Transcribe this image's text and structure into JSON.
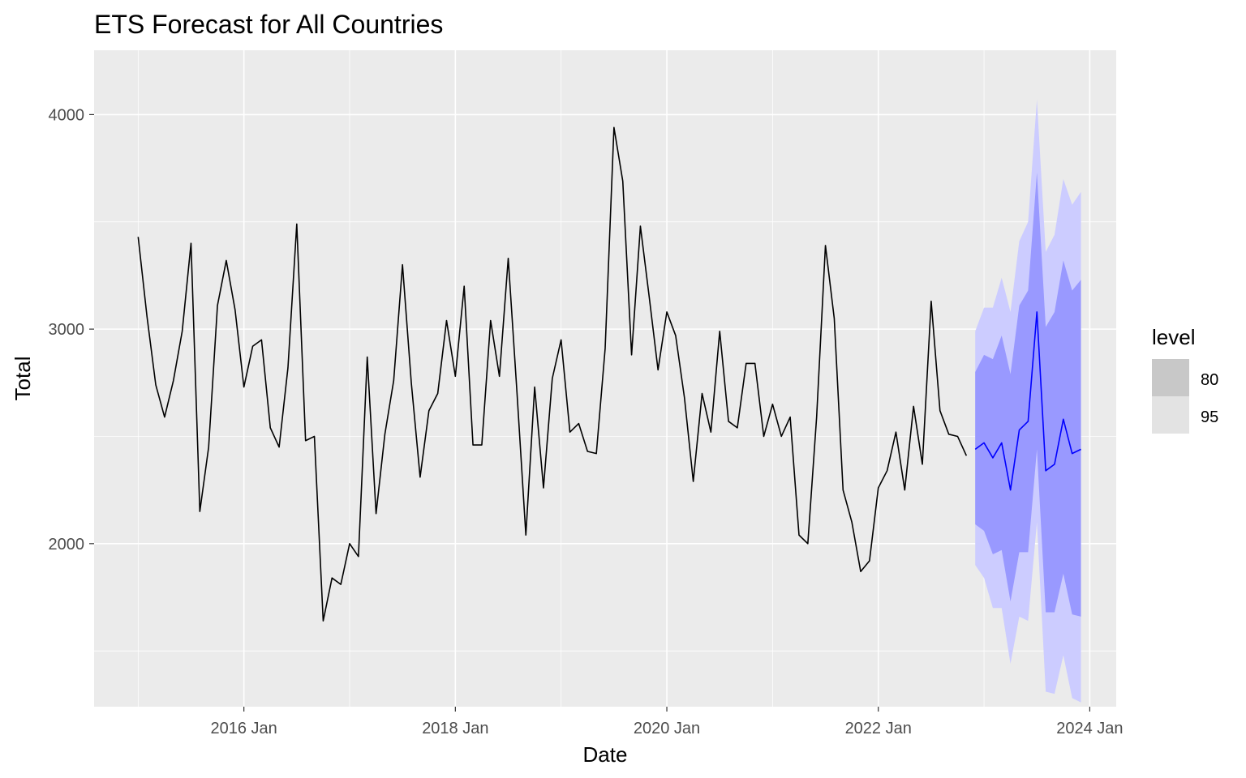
{
  "chart_data": {
    "type": "line",
    "title": "ETS Forecast for All Countries",
    "xlabel": "Date",
    "ylabel": "Total",
    "x_ticks": [
      "2016 Jan",
      "2018 Jan",
      "2020 Jan",
      "2022 Jan",
      "2024 Jan"
    ],
    "y_ticks": [
      "2000",
      "3000",
      "4000"
    ],
    "y_tick_values": [
      2000,
      3000,
      4000
    ],
    "ylim": [
      1240,
      4300
    ],
    "xlim": [
      "2014-08",
      "2024-04"
    ],
    "grid": true,
    "legend": {
      "title": "level",
      "position": "right",
      "items": [
        "80",
        "95"
      ]
    },
    "colors": {
      "panel": "#ebebeb",
      "gridline": "#ffffff",
      "history_line": "#000000",
      "forecast_line": "#0000ff",
      "band_95": "#ccccff",
      "band_80": "#9999ff",
      "legend_80": "#c8c8c8",
      "legend_95": "#e3e3e3"
    },
    "series": [
      {
        "role": "history",
        "start": "2015-01",
        "frequency": "monthly",
        "values": [
          3430,
          3060,
          2740,
          2590,
          2760,
          2990,
          3400,
          2150,
          2450,
          3110,
          3320,
          3090,
          2730,
          2920,
          2950,
          2540,
          2450,
          2820,
          3490,
          2480,
          2500,
          1640,
          1840,
          1810,
          2000,
          1940,
          2870,
          2140,
          2510,
          2760,
          3300,
          2750,
          2310,
          2620,
          2700,
          3040,
          2780,
          3200,
          2460,
          2460,
          3040,
          2780,
          3330,
          2700,
          2040,
          2730,
          2260,
          2770,
          2950,
          2520,
          2560,
          2430,
          2420,
          2910,
          3940,
          3690,
          2880,
          3480,
          3150,
          2810,
          3080,
          2970,
          2680,
          2290,
          2700,
          2520,
          2990,
          2570,
          2540,
          2840,
          2840,
          2500,
          2650,
          2500,
          2590,
          2040,
          2000,
          2590,
          3390,
          3050,
          2250,
          2100,
          1870,
          1920,
          2260,
          2340,
          2520,
          2250,
          2640,
          2370,
          3130,
          2620,
          2510,
          2500,
          2410
        ]
      },
      {
        "role": "forecast",
        "start": "2022-12",
        "frequency": "monthly",
        "values": [
          2440,
          2470,
          2400,
          2470,
          2250,
          2530,
          2570,
          3080,
          2340,
          2370,
          2580,
          2420,
          2440
        ],
        "lo80": [
          2090,
          2060,
          1950,
          1970,
          1730,
          1960,
          1960,
          2440,
          1680,
          1680,
          1860,
          1670,
          1660
        ],
        "hi80": [
          2800,
          2880,
          2860,
          2970,
          2790,
          3110,
          3180,
          3730,
          3010,
          3080,
          3320,
          3180,
          3230
        ],
        "lo95": [
          1900,
          1840,
          1700,
          1700,
          1440,
          1660,
          1640,
          2100,
          1310,
          1300,
          1480,
          1280,
          1260
        ],
        "hi95": [
          2990,
          3100,
          3100,
          3240,
          3080,
          3410,
          3500,
          4070,
          3360,
          3440,
          3700,
          3580,
          3640
        ]
      }
    ]
  }
}
